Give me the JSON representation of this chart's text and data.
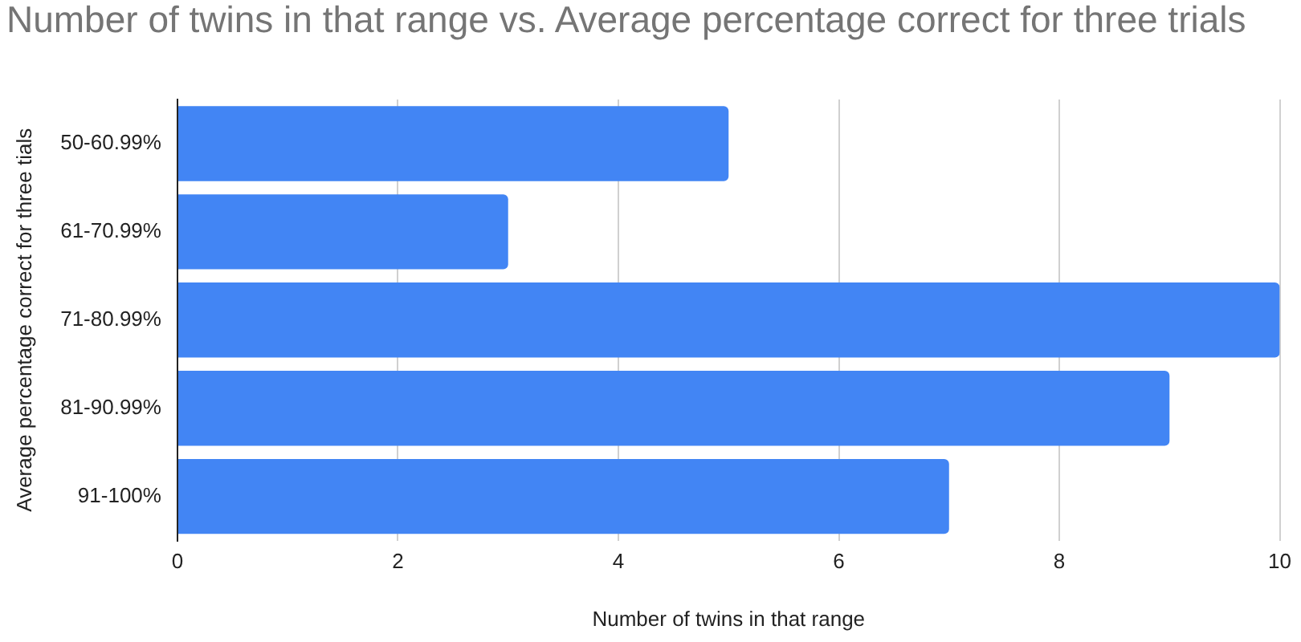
{
  "chart_data": {
    "type": "bar",
    "orientation": "horizontal",
    "title": "Number of twins in that range vs. Average percentage correct for three trials",
    "xlabel": "Number of twins in that range",
    "ylabel": "Average percentage correct for three tials",
    "categories": [
      "50-60.99%",
      "61-70.99%",
      "71-80.99%",
      "81-90.99%",
      "91-100%"
    ],
    "values": [
      5,
      3,
      10,
      9,
      7
    ],
    "color": "#4285f4",
    "xlim": [
      0,
      10
    ],
    "xticks": [
      0,
      2,
      4,
      6,
      8,
      10
    ],
    "grid": "x"
  }
}
